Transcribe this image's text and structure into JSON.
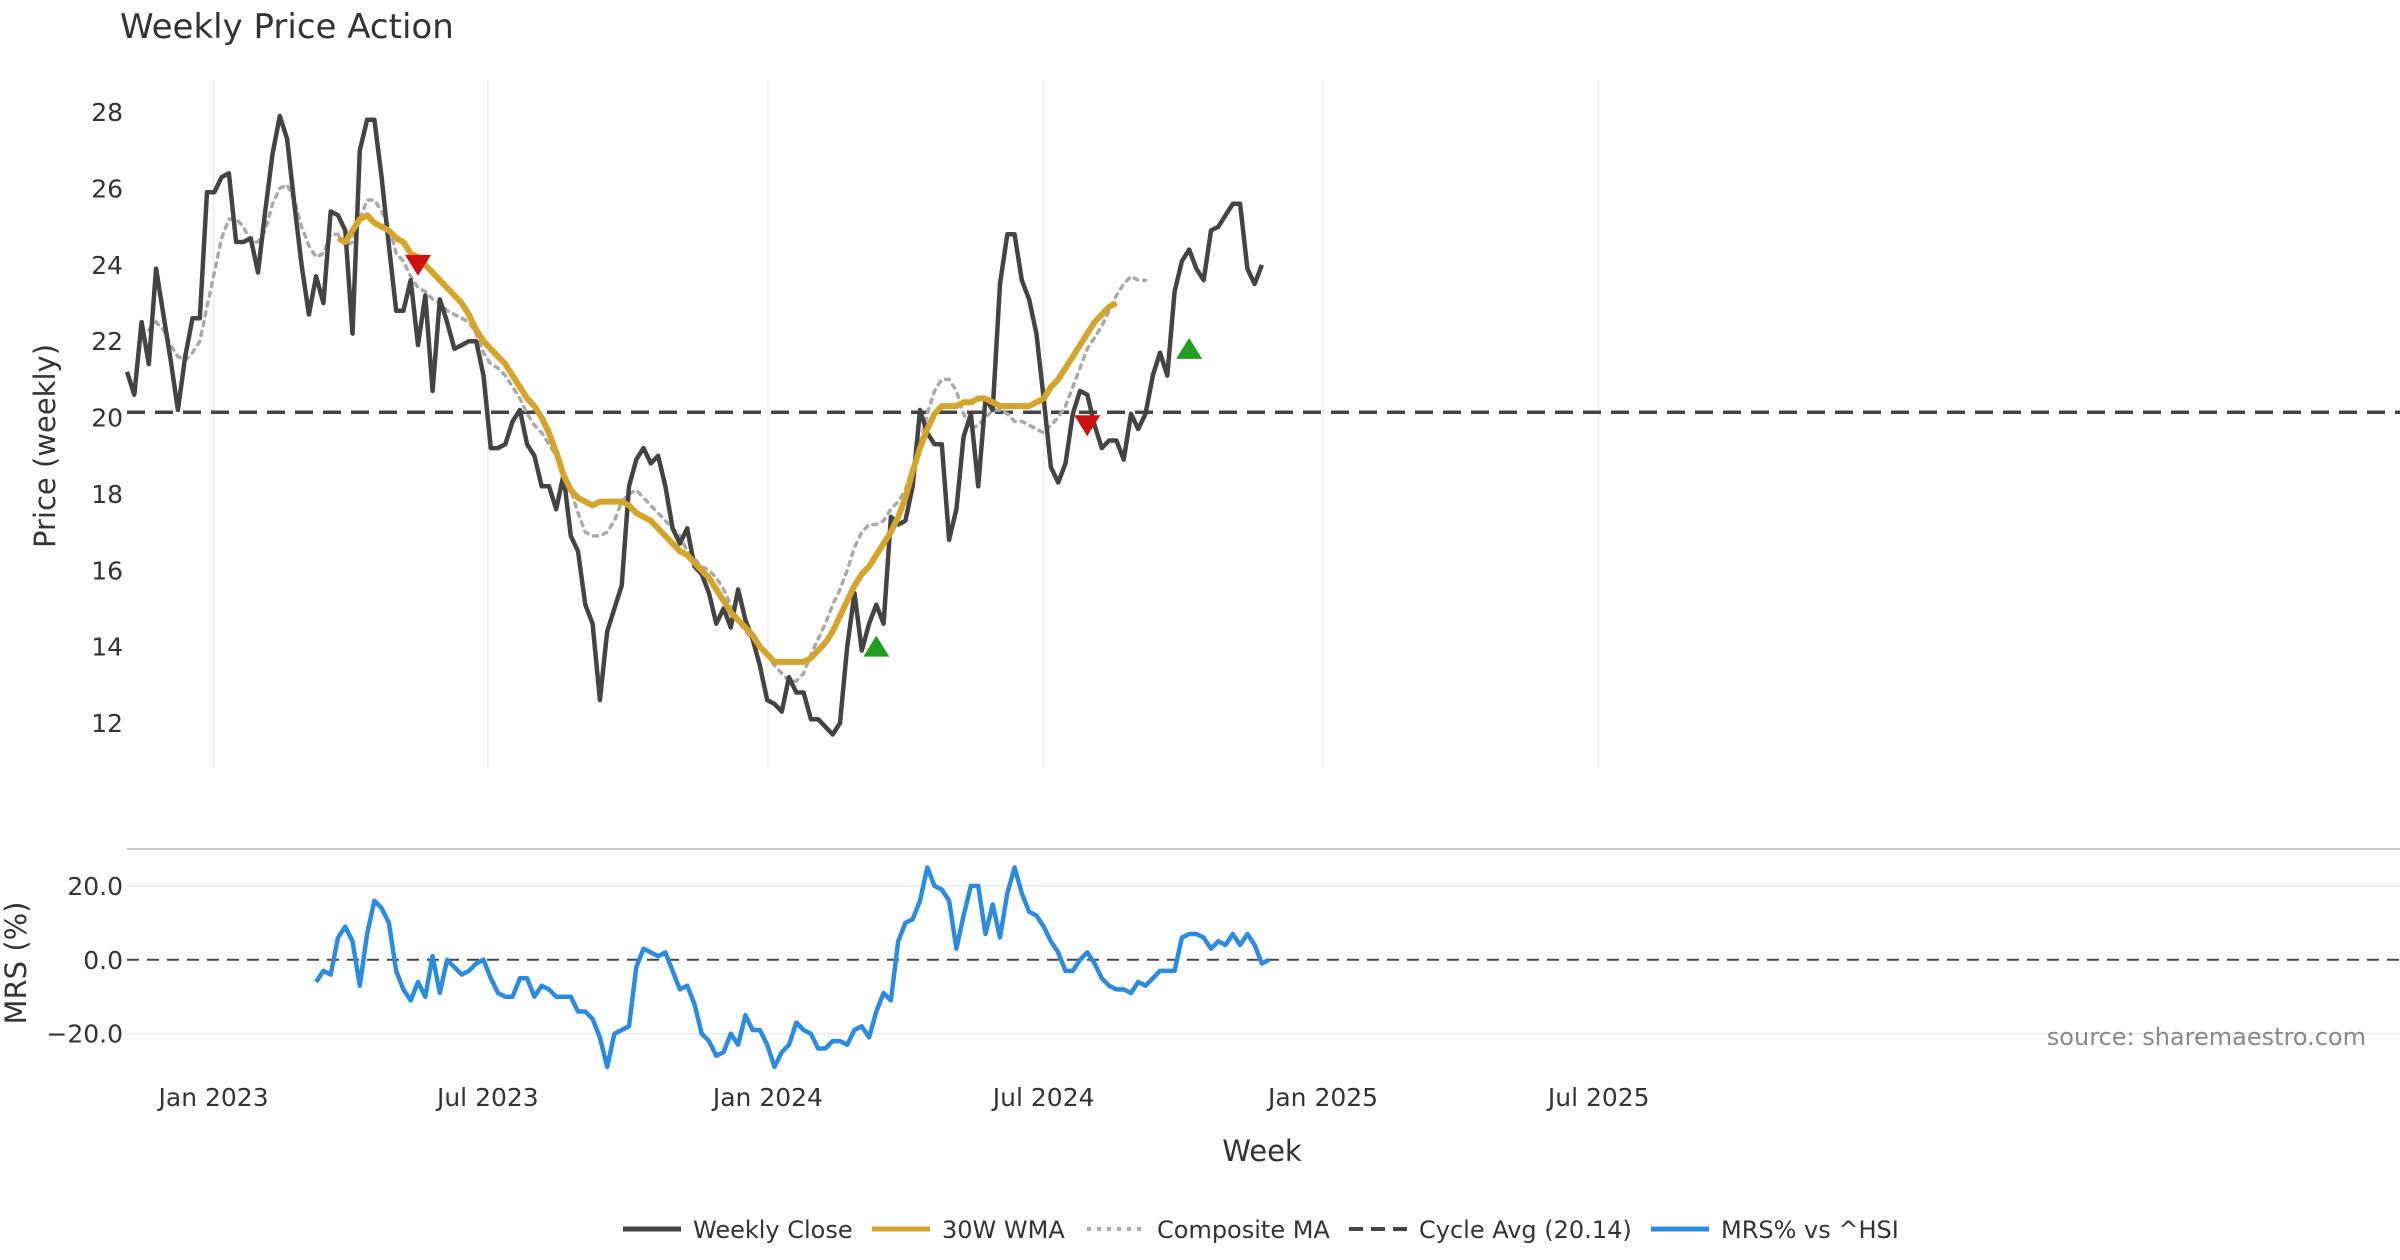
{
  "title": "Weekly Price Action",
  "source": "source: sharemaestro.com",
  "xlabel": "Week",
  "x_ticks": [
    "Jan 2023",
    "Jul 2023",
    "Jan 2024",
    "Jul 2024",
    "Jan 2025",
    "Jul 2025"
  ],
  "legend": {
    "items": [
      {
        "label": "Weekly Close",
        "style": "solid-dark"
      },
      {
        "label": "30W WMA",
        "style": "solid-gold"
      },
      {
        "label": "Composite MA",
        "style": "dotted-gray"
      },
      {
        "label": "Cycle Avg (20.14)",
        "style": "dashed-dark"
      },
      {
        "label": "MRS% vs ^HSI",
        "style": "solid-blue"
      }
    ]
  },
  "colors": {
    "close": "#444444",
    "wma": "#d4a52a",
    "composite": "#aaaaaa",
    "cycle": "#444444",
    "mrs": "#2b8be0",
    "buy": "#1f9e1f",
    "sell": "#cc1111"
  },
  "chart_data": [
    {
      "type": "line",
      "panel": "price",
      "ylabel": "Price (weekly)",
      "ylim": [
        10.9,
        29.0
      ],
      "y_ticks": [
        12,
        14,
        16,
        18,
        20,
        22,
        24,
        26,
        28
      ],
      "x_start_week": "2022-11-11",
      "cycle_avg": 20.14,
      "series": [
        {
          "name": "Weekly Close",
          "values": [
            21.2,
            20.6,
            22.5,
            21.4,
            23.9,
            22.7,
            21.5,
            20.2,
            21.6,
            22.6,
            22.6,
            25.9,
            25.9,
            26.3,
            26.4,
            24.6,
            24.6,
            24.7,
            23.8,
            25.4,
            26.9,
            27.9,
            27.3,
            25.6,
            24.0,
            22.7,
            23.7,
            23.0,
            25.4,
            25.3,
            24.9,
            22.2,
            27.0,
            27.8,
            27.8,
            26.3,
            24.5,
            22.8,
            22.8,
            23.6,
            21.9,
            23.2,
            20.7,
            23.1,
            22.5,
            21.8,
            21.9,
            22.0,
            22.0,
            21.1,
            19.2,
            19.2,
            19.3,
            19.9,
            20.2,
            19.3,
            19.0,
            18.2,
            18.2,
            17.6,
            18.5,
            16.9,
            16.5,
            15.1,
            14.6,
            12.6,
            14.4,
            15.0,
            15.6,
            18.2,
            18.9,
            19.2,
            18.8,
            19.0,
            18.2,
            17.1,
            16.7,
            17.1,
            16.1,
            15.9,
            15.4,
            14.6,
            15.0,
            14.5,
            15.5,
            14.7,
            14.2,
            13.5,
            12.6,
            12.5,
            12.3,
            13.2,
            12.8,
            12.8,
            12.1,
            12.1,
            11.9,
            11.7,
            12.0,
            14.0,
            15.4,
            13.9,
            14.6,
            15.1,
            14.6,
            17.4,
            17.2,
            17.3,
            18.2,
            20.2,
            19.6,
            19.3,
            19.3,
            16.8,
            17.6,
            19.5,
            20.1,
            18.2,
            20.5,
            20.2,
            23.5,
            24.8,
            24.8,
            23.6,
            23.1,
            22.2,
            20.5,
            18.7,
            18.3,
            18.8,
            20.1,
            20.7,
            20.6,
            19.8,
            19.2,
            19.4,
            19.4,
            18.9,
            20.1,
            19.7,
            20.1,
            21.1,
            21.7,
            21.1,
            23.3,
            24.1,
            24.4,
            23.9,
            23.6,
            24.9,
            25.0,
            25.3,
            25.6,
            25.6,
            23.9,
            23.5,
            24.0
          ]
        },
        {
          "name": "30W WMA",
          "start_index": 29,
          "values": [
            24.7,
            24.6,
            24.9,
            25.2,
            25.3,
            25.1,
            25.0,
            24.9,
            24.7,
            24.6,
            24.3,
            24.2,
            24.0,
            23.8,
            23.6,
            23.4,
            23.2,
            23.0,
            22.7,
            22.3,
            22.0,
            21.8,
            21.6,
            21.4,
            21.1,
            20.8,
            20.5,
            20.3,
            20.0,
            19.6,
            19.1,
            18.5,
            18.1,
            17.9,
            17.8,
            17.7,
            17.8,
            17.8,
            17.8,
            17.8,
            17.7,
            17.5,
            17.4,
            17.3,
            17.1,
            16.9,
            16.7,
            16.5,
            16.4,
            16.2,
            16.0,
            15.8,
            15.5,
            15.2,
            14.9,
            14.7,
            14.5,
            14.3,
            14.0,
            13.8,
            13.6,
            13.6,
            13.6,
            13.6,
            13.6,
            13.7,
            13.9,
            14.1,
            14.4,
            14.8,
            15.2,
            15.6,
            15.9,
            16.1,
            16.4,
            16.7,
            17.0,
            17.4,
            17.9,
            18.6,
            19.2,
            19.7,
            20.1,
            20.3,
            20.3,
            20.3,
            20.4,
            20.4,
            20.5,
            20.5,
            20.4,
            20.3,
            20.3,
            20.3,
            20.3,
            20.3,
            20.4,
            20.5,
            20.8,
            21.0,
            21.3,
            21.6,
            21.9,
            22.2,
            22.5,
            22.7,
            22.9,
            23.0
          ]
        },
        {
          "name": "Composite MA",
          "start_index": 3,
          "values": [
            22.3,
            22.5,
            22.3,
            21.9,
            21.6,
            21.5,
            21.7,
            22.0,
            22.9,
            23.8,
            24.7,
            25.2,
            25.2,
            25.0,
            24.6,
            24.6,
            24.9,
            25.6,
            26.0,
            26.1,
            25.7,
            25.0,
            24.5,
            24.2,
            24.3,
            24.8,
            24.8,
            24.5,
            24.6,
            25.2,
            25.7,
            25.7,
            25.4,
            25.0,
            24.3,
            24.1,
            23.7,
            23.4,
            23.3,
            23.1,
            23.0,
            22.8,
            22.7,
            22.6,
            22.5,
            22.2,
            21.7,
            21.4,
            21.3,
            21.1,
            20.8,
            20.5,
            20.1,
            19.8,
            19.6,
            19.3,
            19.0,
            18.6,
            18.1,
            17.5,
            17.0,
            16.9,
            16.9,
            17.0,
            17.3,
            17.8,
            18.0,
            18.1,
            17.9,
            17.7,
            17.5,
            17.3,
            17.1,
            16.9,
            16.5,
            16.3,
            16.1,
            16.0,
            15.8,
            15.5,
            15.1,
            14.7,
            14.4,
            14.2,
            14.0,
            13.8,
            13.5,
            13.3,
            13.1,
            13.1,
            13.3,
            13.8,
            14.2,
            14.6,
            15.1,
            15.5,
            16.0,
            16.6,
            17.0,
            17.2,
            17.2,
            17.3,
            17.6,
            17.8,
            18.1,
            18.7,
            19.3,
            20.1,
            20.7,
            21.0,
            21.0,
            20.7,
            20.1,
            19.7,
            19.8,
            20.0,
            20.2,
            20.2,
            20.1,
            19.9,
            19.9,
            19.8,
            19.7,
            19.6,
            19.8,
            20.0,
            20.3,
            20.8,
            21.3,
            21.8,
            22.1,
            22.4,
            22.8,
            23.2,
            23.5,
            23.7,
            23.6,
            23.6
          ]
        }
      ],
      "signals": [
        {
          "type": "sell",
          "x_index": 40,
          "value": 24.0
        },
        {
          "type": "buy",
          "x_index": 103,
          "value": 14.0
        },
        {
          "type": "sell",
          "x_index": 132,
          "value": 19.8
        },
        {
          "type": "buy",
          "x_index": 146,
          "value": 21.8
        }
      ]
    },
    {
      "type": "line",
      "panel": "mrs",
      "ylabel": "MRS (%)",
      "ylim": [
        -32,
        30
      ],
      "y_ticks": [
        "20.0",
        "0.0",
        "−20.0"
      ],
      "y_tick_values": [
        20,
        0,
        -20
      ],
      "series": [
        {
          "name": "MRS% vs ^HSI",
          "start_index": 26,
          "values": [
            -6.0,
            -3.0,
            -4.0,
            6.0,
            9.0,
            5.0,
            -7.0,
            7.0,
            16.0,
            14.0,
            10.0,
            -3.0,
            -8.0,
            -11.0,
            -6.0,
            -10.0,
            1.0,
            -9.0,
            0.0,
            -2.0,
            -4.0,
            -3.0,
            -1.0,
            0.0,
            -5.0,
            -9.0,
            -10.0,
            -10.0,
            -5.0,
            -5.0,
            -10.0,
            -7.0,
            -8.0,
            -10.0,
            -10.0,
            -10.0,
            -14.0,
            -14.0,
            -16.0,
            -21.0,
            -29.0,
            -20.0,
            -19.0,
            -18.0,
            -2.0,
            3.0,
            2.0,
            1.0,
            2.0,
            -3.0,
            -8.0,
            -7.0,
            -12.0,
            -20.0,
            -22.0,
            -26.0,
            -25.0,
            -20.0,
            -23.0,
            -15.0,
            -19.0,
            -19.0,
            -23.0,
            -29.0,
            -25.0,
            -23.0,
            -17.0,
            -19.0,
            -20.0,
            -24.0,
            -24.0,
            -22.0,
            -22.0,
            -23.0,
            -19.0,
            -18.0,
            -21.0,
            -14.0,
            -9.0,
            -11.0,
            5.0,
            10.0,
            11.0,
            16.0,
            25.0,
            20.0,
            19.0,
            16.0,
            3.0,
            12.0,
            20.0,
            20.0,
            7.0,
            15.0,
            6.0,
            18.0,
            25.0,
            18.0,
            13.0,
            12.0,
            9.0,
            5.0,
            2.0,
            -3.0,
            -3.0,
            0.0,
            2.0,
            -1.0,
            -5.0,
            -7.0,
            -8.0,
            -8.0,
            -9.0,
            -6.0,
            -7.0,
            -5.0,
            -3.0,
            -3.0,
            -3.0,
            6.0,
            7.0,
            7.0,
            6.0,
            3.0,
            5.0,
            4.0,
            7.0,
            4.0,
            7.0,
            4.0,
            -1.0,
            0.0
          ]
        }
      ]
    }
  ]
}
